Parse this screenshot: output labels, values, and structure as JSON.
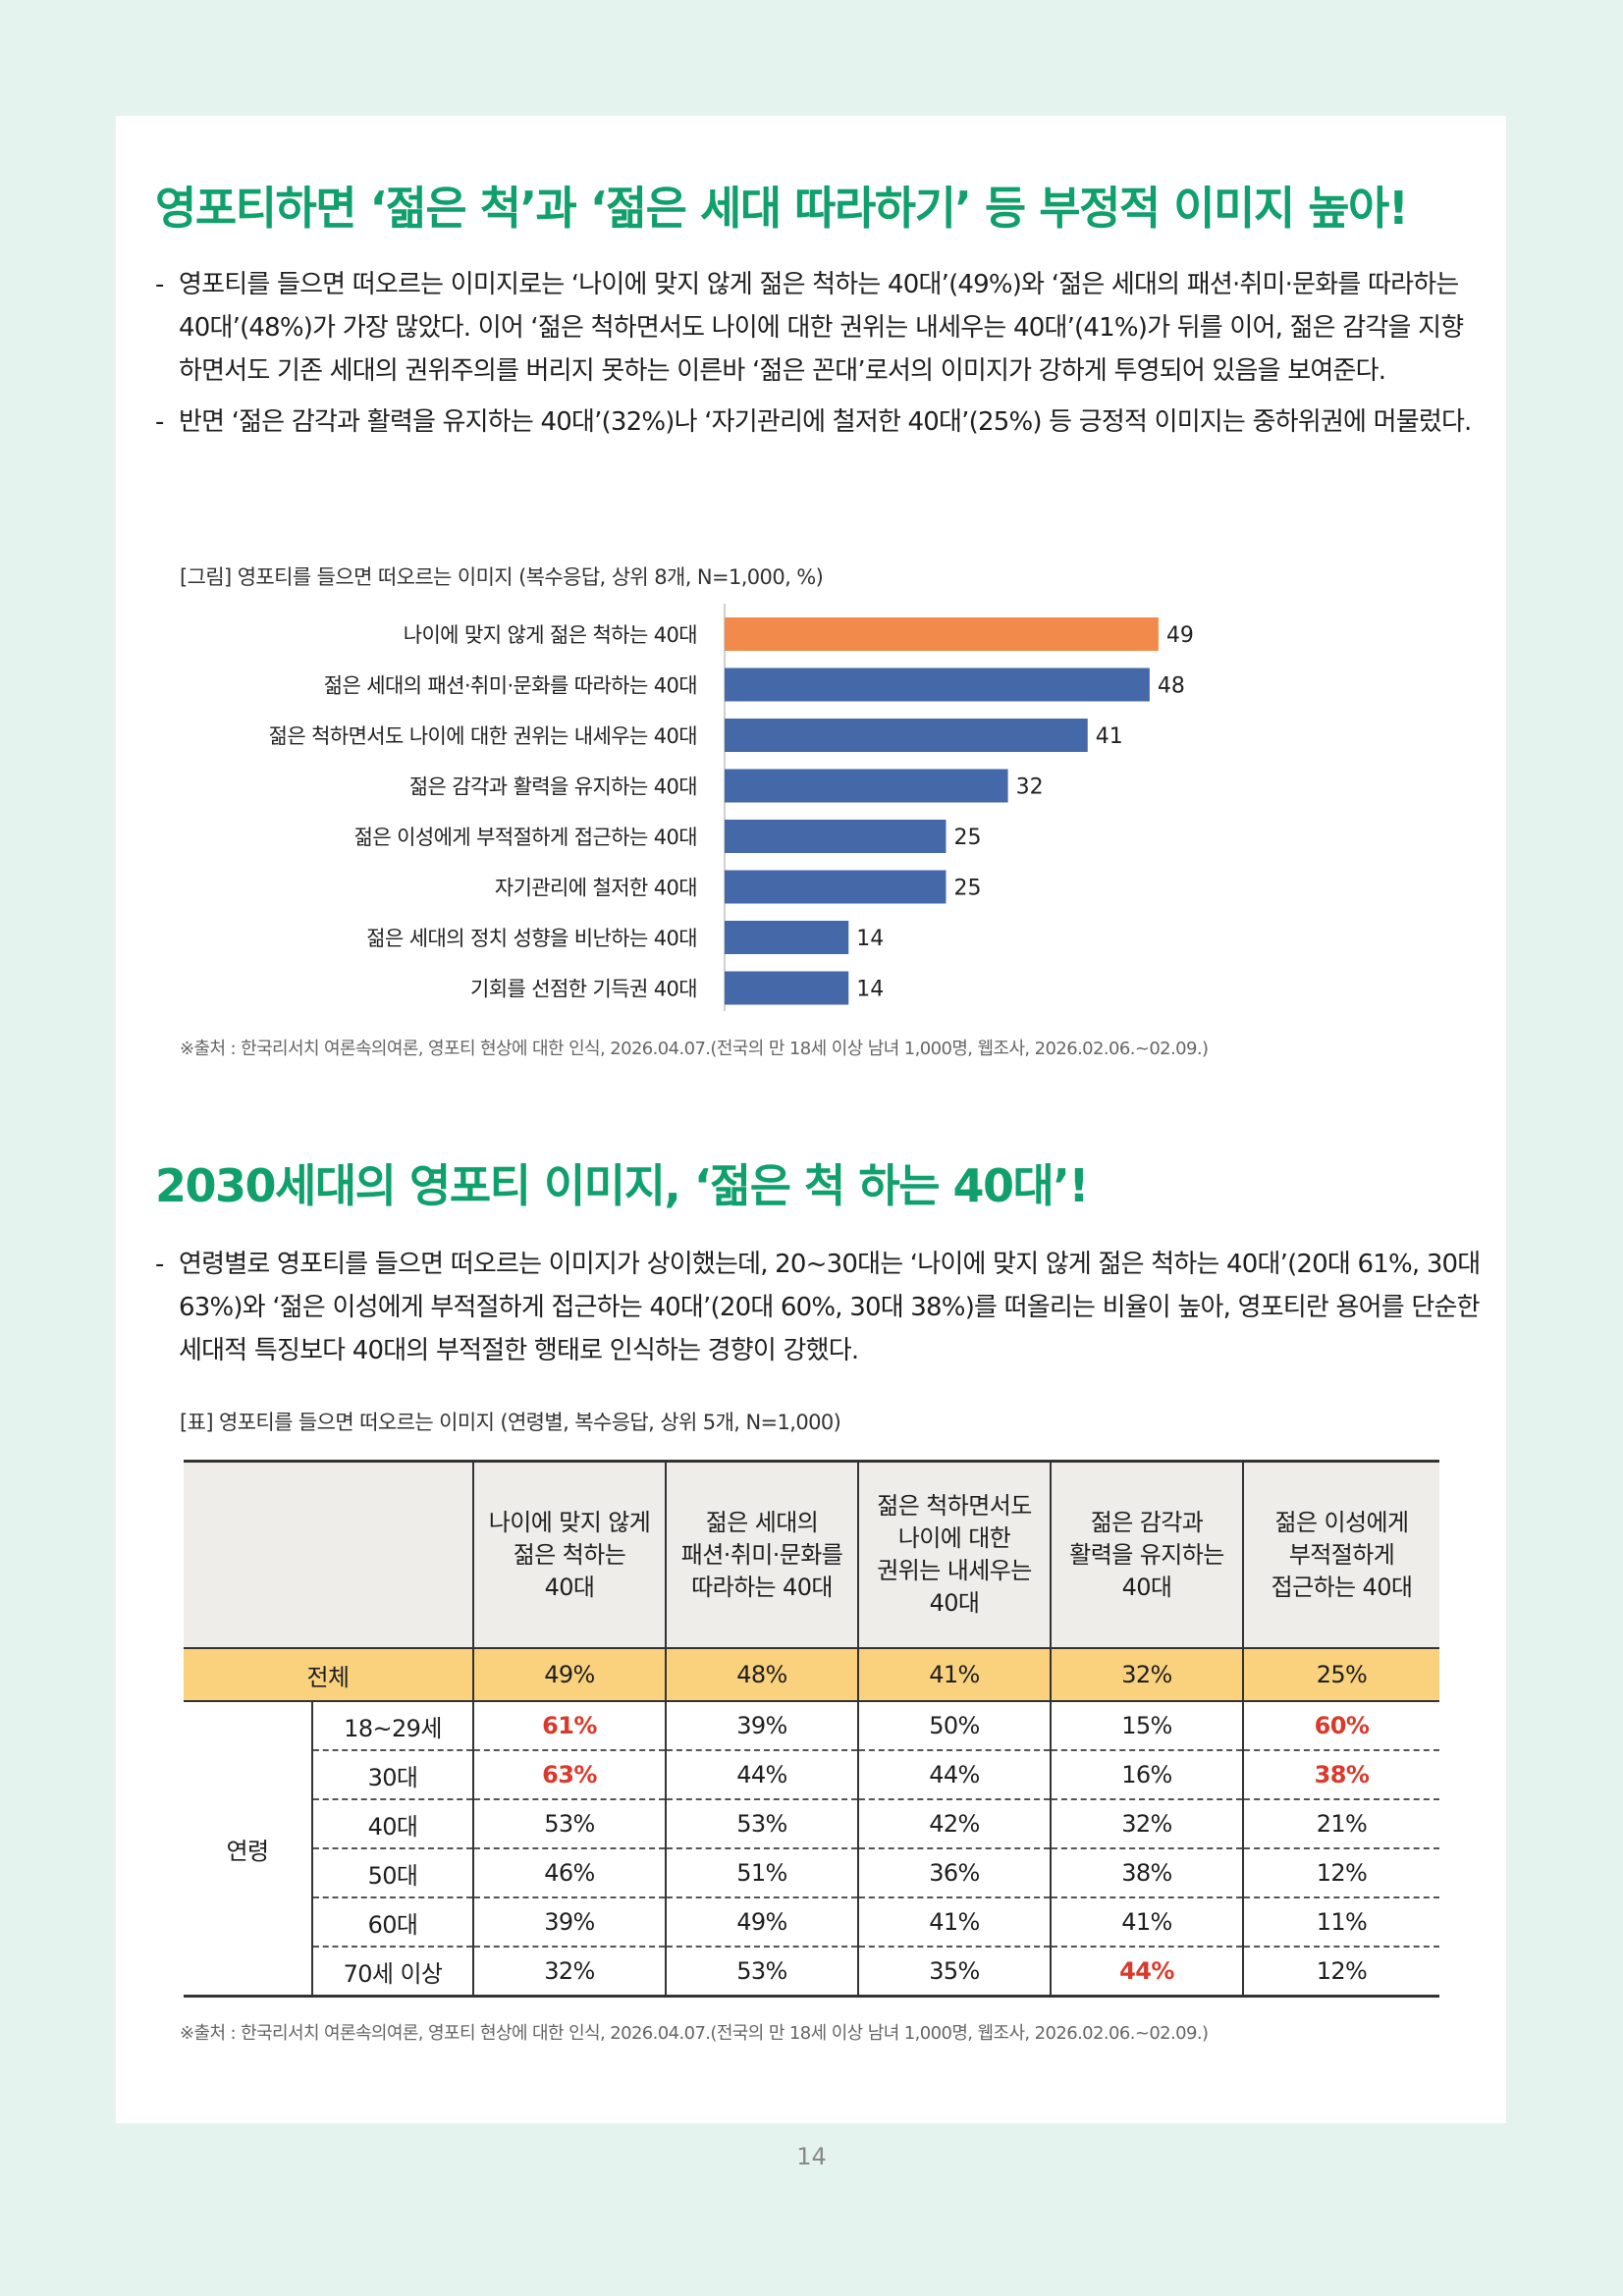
{
  "section1": {
    "heading": "영포티하면 ‘젊은 척’과 ‘젊은 세대 따라하기’ 등 부정적 이미지 높아!",
    "bullets": [
      "영포티를 들으면 떠오르는 이미지로는 ‘나이에 맞지 않게 젊은 척하는 40대’(49%)와 ‘젊은 세대의 패션·취미·문화를 따라하는 40대’(48%)가 가장 많았다. 이어 ‘젊은 척하면서도 나이에 대한 권위는 내세우는 40대’(41%)가 뒤를 이어, 젊은 감각을 지향하면서도 기존 세대의 권위주의를 버리지 못하는 이른바 ‘젊은 꼰대’로서의 이미지가 강하게 투영되어 있음을 보여준다.",
      "반면 ‘젊은 감각과 활력을 유지하는 40대’(32%)나 ‘자기관리에 철저한 40대’(25%) 등 긍정적 이미지는 중하위권에 머물렀다."
    ],
    "caption": "[그림] 영포티를 들으면 떠오르는 이미지 (복수응답, 상위 8개, N=1,000, %)",
    "source": "※출처 : 한국리서치 여론속의여론, 영포티 현상에 대한 인식, 2026.04.07.(전국의 만 18세 이상 남녀 1,000명, 웹조사, 2026.02.06.~02.09.)"
  },
  "chart_data": {
    "type": "bar",
    "orientation": "horizontal",
    "categories": [
      "나이에 맞지 않게 젊은 척하는 40대",
      "젊은 세대의 패션·취미·문화를 따라하는 40대",
      "젊은 척하면서도 나이에 대한 권위는 내세우는 40대",
      "젊은 감각과 활력을 유지하는 40대",
      "젊은 이성에게 부적절하게 접근하는 40대",
      "자기관리에 철저한 40대",
      "젊은 세대의 정치 성향을 비난하는 40대",
      "기회를 선점한 기득권 40대"
    ],
    "values": [
      49,
      48,
      41,
      32,
      25,
      25,
      14,
      14
    ],
    "colors": [
      "#f28a4b",
      "#4468a8",
      "#4468a8",
      "#4468a8",
      "#4468a8",
      "#4468a8",
      "#4468a8",
      "#4468a8"
    ],
    "xlim": [
      0,
      55
    ],
    "grid": false
  },
  "section2": {
    "heading": "2030세대의 영포티 이미지, ‘젊은 척 하는 40대’!",
    "bullets": [
      "연령별로 영포티를 들으면 떠오르는 이미지가 상이했는데, 20~30대는 ‘나이에 맞지 않게 젊은 척하는 40대’(20대 61%, 30대 63%)와 ‘젊은 이성에게 부적절하게 접근하는 40대’(20대 60%, 30대 38%)를 떠올리는 비율이 높아, 영포티란 용어를 단순한 세대적 특징보다 40대의 부적절한 행태로 인식하는 경향이 강했다."
    ],
    "caption": "[표] 영포티를 들으면 떠오르는 이미지 (연령별, 복수응답, 상위 5개, N=1,000)",
    "source": "※출처 : 한국리서치 여론속의여론, 영포티 현상에 대한 인식, 2026.04.07.(전국의 만 18세 이상 남녀 1,000명, 웹조사, 2026.02.06.~02.09.)"
  },
  "table": {
    "headers": [
      [
        "나이에 맞지 않게",
        "젊은 척하는",
        "40대"
      ],
      [
        "젊은 세대의",
        "패션·취미·문화를",
        "따라하는 40대"
      ],
      [
        "젊은 척하면서도",
        "나이에 대한",
        "권위는 내세우는",
        "40대"
      ],
      [
        "젊은 감각과",
        "활력을 유지하는",
        "40대"
      ],
      [
        "젊은 이성에게",
        "부적절하게",
        "접근하는 40대"
      ]
    ],
    "total_label": "전체",
    "total": [
      "49%",
      "48%",
      "41%",
      "32%",
      "25%"
    ],
    "group_label": "연령",
    "rows": [
      {
        "label": "18~29세",
        "values": [
          "61%",
          "39%",
          "50%",
          "15%",
          "60%"
        ]
      },
      {
        "label": "30대",
        "values": [
          "63%",
          "44%",
          "44%",
          "16%",
          "38%"
        ]
      },
      {
        "label": "40대",
        "values": [
          "53%",
          "53%",
          "42%",
          "32%",
          "21%"
        ]
      },
      {
        "label": "50대",
        "values": [
          "46%",
          "51%",
          "36%",
          "38%",
          "12%"
        ]
      },
      {
        "label": "60대",
        "values": [
          "39%",
          "49%",
          "41%",
          "41%",
          "11%"
        ]
      },
      {
        "label": "70세 이상",
        "values": [
          "32%",
          "53%",
          "35%",
          "44%",
          "12%"
        ]
      }
    ],
    "highlight_color": "#d93a2b"
  },
  "page_number": "14"
}
